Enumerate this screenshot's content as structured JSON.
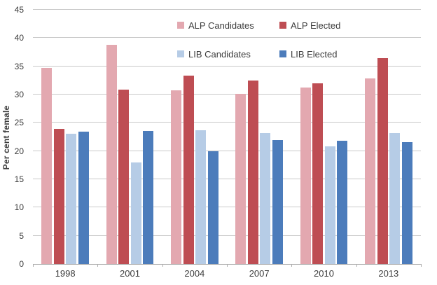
{
  "chart_data": {
    "type": "bar",
    "title": "",
    "ylabel": "Per cent female",
    "xlabel": "",
    "categories": [
      "1998",
      "2001",
      "2004",
      "2007",
      "2010",
      "2013"
    ],
    "series": [
      {
        "name": "ALP Candidates",
        "color": "#E3A8B0",
        "values": [
          34.7,
          38.8,
          30.7,
          30.1,
          31.3,
          32.8
        ]
      },
      {
        "name": "ALP Elected",
        "color": "#BE4D53",
        "values": [
          23.9,
          30.9,
          33.4,
          32.5,
          32.0,
          36.5
        ]
      },
      {
        "name": "LIB Candidates",
        "color": "#B6CCE6",
        "values": [
          23.1,
          18.0,
          23.7,
          23.2,
          20.8,
          23.2
        ]
      },
      {
        "name": "LIB Elected",
        "color": "#4C7CBB",
        "values": [
          23.4,
          23.6,
          20.0,
          21.9,
          21.8,
          21.6
        ]
      }
    ],
    "ylim": [
      0,
      45
    ],
    "ytick_step": 5,
    "grid": true,
    "legend_position": "top-inside",
    "colors": {
      "gridline": "#C9C9C9",
      "axis": "#ADADAD",
      "text": "#3C3C3C",
      "background": "#FFFFFF"
    }
  }
}
